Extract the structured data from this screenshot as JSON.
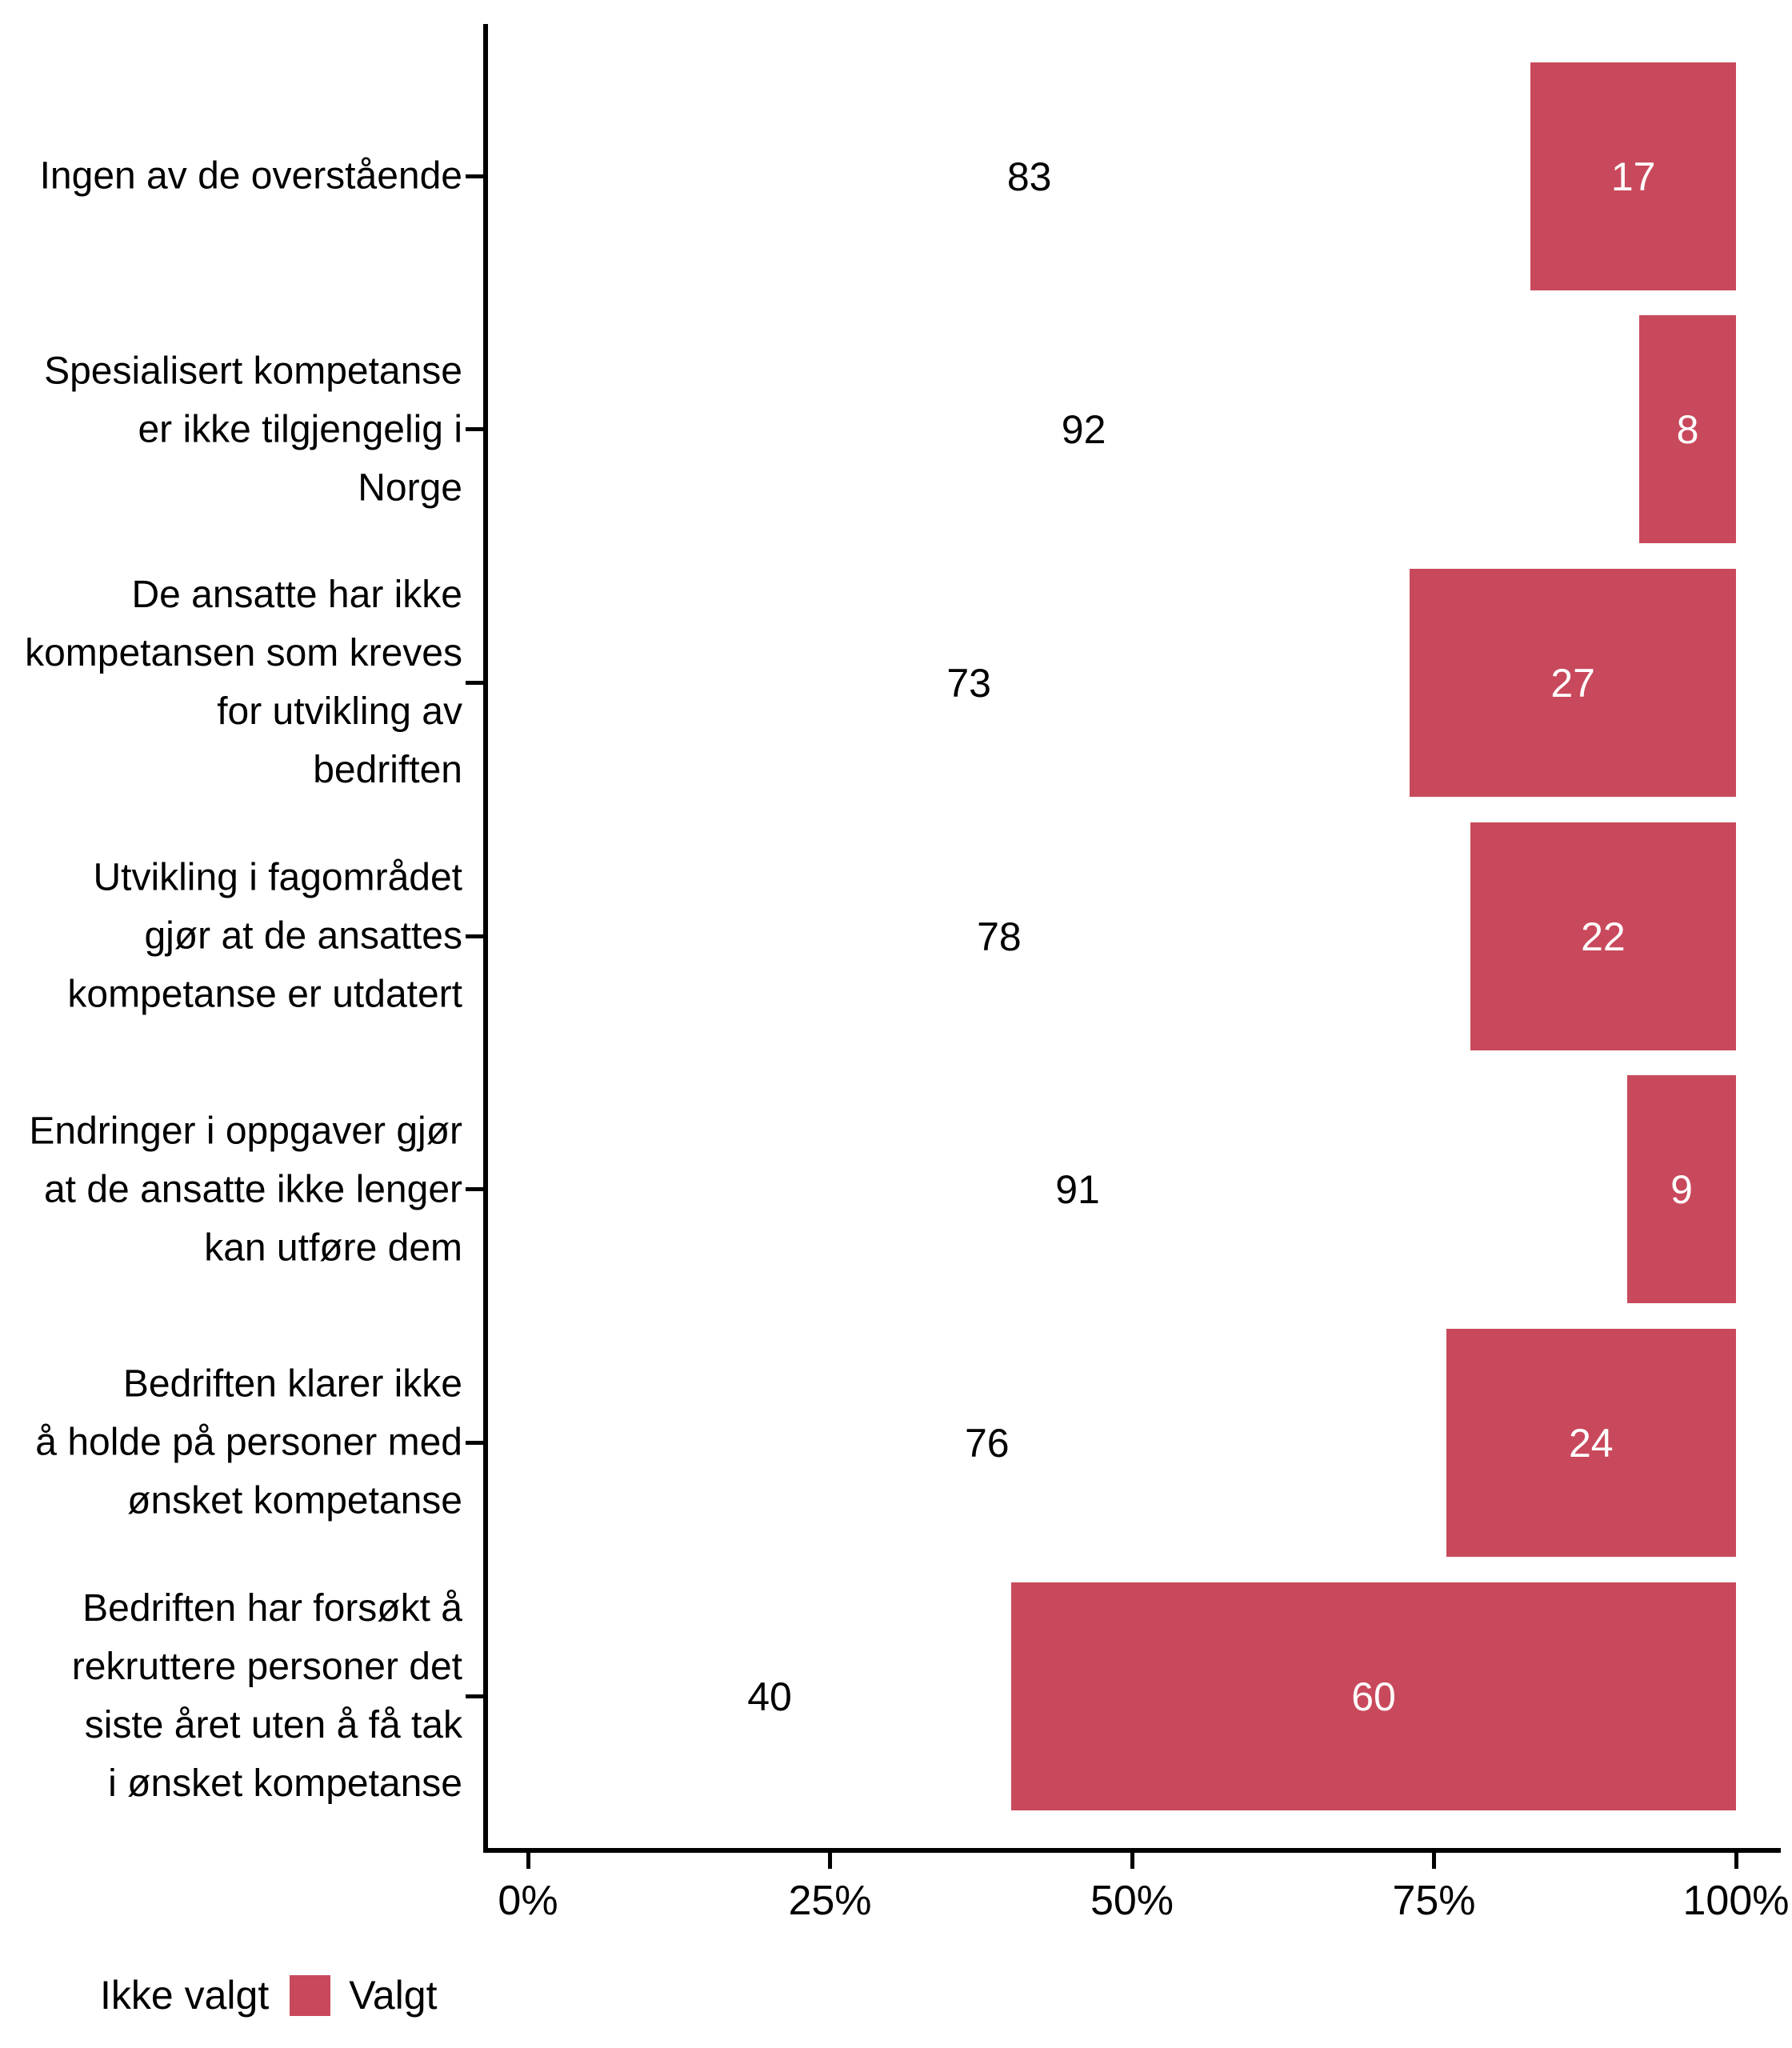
{
  "chart_data": {
    "type": "bar",
    "orientation": "horizontal_stacked_100pct",
    "title": "",
    "categories": [
      "Ingen av de overstående",
      "Spesialisert kompetanse\ner ikke tilgjengelig i\nNorge",
      "De ansatte har ikke\nkompetansen som kreves\nfor utvikling av\nbedriften",
      "Utvikling i fagområdet\ngjør at de ansattes\nkompetanse er utdatert",
      "Endringer i oppgaver gjør\nat de ansatte ikke lenger\nkan utføre dem",
      "Bedriften klarer ikke\nå holde på personer med\nønsket kompetanse",
      "Bedriften har forsøkt å\nrekruttere personer det\nsiste året uten å få tak\ni ønsket kompetanse"
    ],
    "series": [
      {
        "name": "Ikke valgt",
        "color": "#FFFFFF",
        "label_color": "#000000",
        "values": [
          83,
          92,
          73,
          78,
          91,
          76,
          40
        ]
      },
      {
        "name": "Valgt",
        "color": "#C9495C",
        "label_color": "#FFFFFF",
        "values": [
          17,
          8,
          27,
          22,
          9,
          24,
          60
        ]
      }
    ],
    "x_axis": {
      "range": [
        0,
        100
      ],
      "tick_values": [
        0,
        25,
        50,
        75,
        100
      ],
      "tick_labels": [
        "0%",
        "25%",
        "50%",
        "75%",
        "100%"
      ]
    },
    "grid": false,
    "legend": {
      "position": "bottom-left",
      "items": [
        {
          "label": "Ikke valgt",
          "color": "#FFFFFF"
        },
        {
          "label": "Valgt",
          "color": "#C9495C"
        }
      ]
    }
  }
}
